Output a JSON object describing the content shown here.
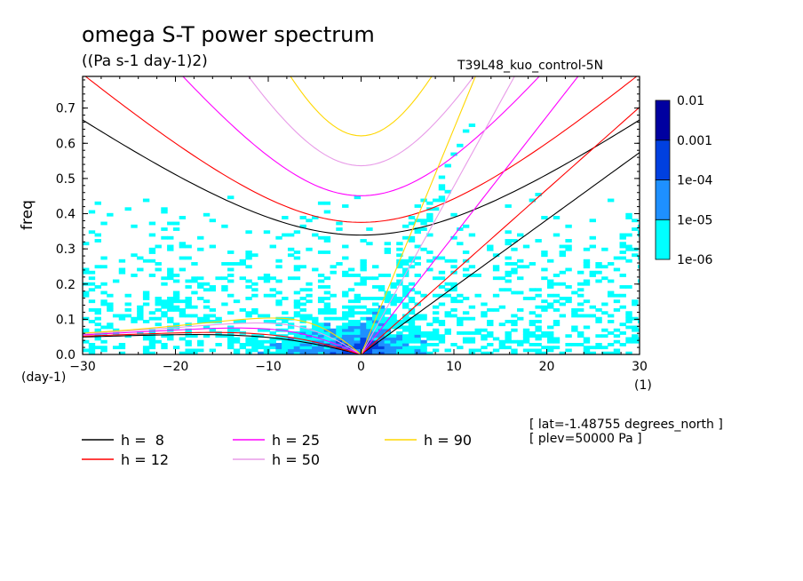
{
  "title": "omega S-T power spectrum",
  "units": "((Pa s-1 day-1)2)",
  "run_label": "T39L48_kuo_control-5N",
  "info_lines": [
    "[ lat=-1.48755 degrees_north ]",
    "[ plev=50000 Pa ]"
  ],
  "chart_data": {
    "type": "heatmap",
    "xlabel": "wvn",
    "ylabel": "freq",
    "x_unit": "(1)",
    "y_unit": "(day-1)",
    "xlim": [
      -30,
      30
    ],
    "ylim": [
      0,
      0.79
    ],
    "x_ticks": [
      -30,
      -20,
      -10,
      0,
      10,
      20,
      30
    ],
    "y_ticks": [
      0.0,
      0.1,
      0.2,
      0.3,
      0.4,
      0.5,
      0.6,
      0.7
    ],
    "colorbar": {
      "levels": [
        "1e-06",
        "1e-05",
        "1e-04",
        "0.001",
        "0.01"
      ],
      "colors": [
        "#00ffff",
        "#1e90ff",
        "#0040e0",
        "#0000a0",
        "#4b0096"
      ]
    },
    "dispersion_curves": [
      {
        "label": "h =  8",
        "h": 8,
        "color": "#000000"
      },
      {
        "label": "h = 12",
        "h": 12,
        "color": "#ff0000"
      },
      {
        "label": "h = 25",
        "h": 25,
        "color": "#ff00ff"
      },
      {
        "label": "h = 50",
        "h": 50,
        "color": "#e89be8"
      },
      {
        "label": "h = 90",
        "h": 90,
        "color": "#ffd700"
      }
    ]
  }
}
